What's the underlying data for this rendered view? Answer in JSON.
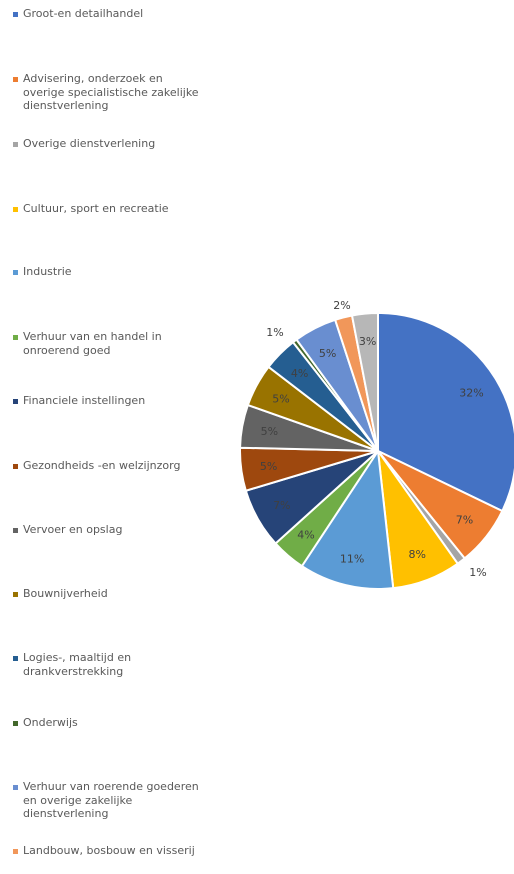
{
  "chart_data": {
    "type": "pie",
    "title": "",
    "legend_position": "left",
    "slices": [
      {
        "label": "Groot-en detailhandel",
        "value": 32,
        "value_label": "32%",
        "color": "#4472C4"
      },
      {
        "label": "Advisering, onderzoek en overige specialistische zakelijke dienstverlening",
        "value": 7,
        "value_label": "7%",
        "color": "#ED7D31"
      },
      {
        "label": "Overige dienstverlening",
        "value": 1,
        "value_label": "1%",
        "color": "#A5A5A5"
      },
      {
        "label": "Cultuur, sport en recreatie",
        "value": 8,
        "value_label": "8%",
        "color": "#FFC000"
      },
      {
        "label": "Industrie",
        "value": 11,
        "value_label": "11%",
        "color": "#5B9BD5"
      },
      {
        "label": "Verhuur van en handel in onroerend goed",
        "value": 4,
        "value_label": "4%",
        "color": "#70AD47"
      },
      {
        "label": "Financiele instellingen",
        "value": 7,
        "value_label": "7%",
        "color": "#264478"
      },
      {
        "label": "Gezondheids -en welzijnzorg",
        "value": 5,
        "value_label": "5%",
        "color": "#9E480E"
      },
      {
        "label": "Vervoer en opslag",
        "value": 5,
        "value_label": "5%",
        "color": "#636363"
      },
      {
        "label": "Bouwnijverheid",
        "value": 5,
        "value_label": "5%",
        "color": "#997300"
      },
      {
        "label": "Logies-, maaltijd en drankverstrekking",
        "value": 4,
        "value_label": "4%",
        "color": "#255E91"
      },
      {
        "label": "Onderwijs",
        "value": 0.5,
        "value_label": "1%",
        "color": "#43682B"
      },
      {
        "label": "Verhuur van roerende goederen en overige zakelijke dienstverlening",
        "value": 5,
        "value_label": "5%",
        "color": "#698ED0"
      },
      {
        "label": "Landbouw, bosbouw en visserij",
        "value": 2,
        "value_label": "2%",
        "color": "#F1975A"
      },
      {
        "label": "",
        "value": 3,
        "value_label": "3%",
        "color": "#B7B7B7"
      }
    ]
  }
}
